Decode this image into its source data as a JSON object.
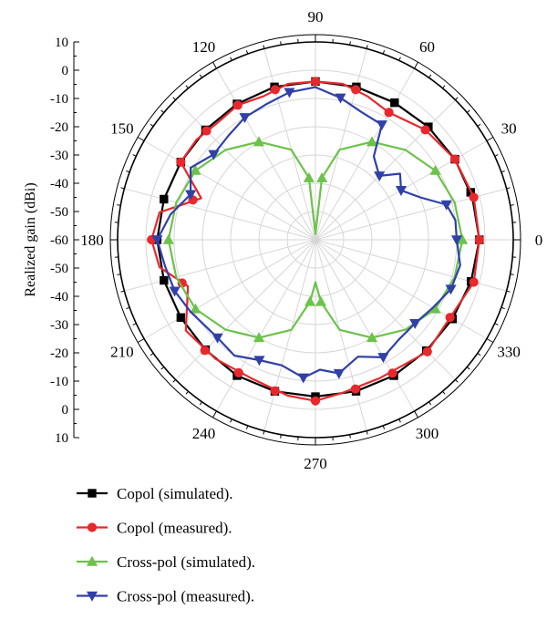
{
  "chart_data": {
    "type": "polar-line",
    "ylabel": "Realized gain (dBi)",
    "radial_range": [
      -60,
      10
    ],
    "radial_ticks_upper": [
      "10",
      "0",
      "-10",
      "-20",
      "-30",
      "-40",
      "-50",
      "-60"
    ],
    "radial_ticks_lower": [
      "-50",
      "-40",
      "-30",
      "-20",
      "-10",
      "0",
      "10"
    ],
    "angle_ticks": [
      "0",
      "30",
      "60",
      "90",
      "120",
      "150",
      "180",
      "210",
      "240",
      "270",
      "300",
      "330"
    ],
    "grid": true,
    "legend_position": "bottom-left",
    "series": [
      {
        "name": "Copol (simulated).",
        "color": "#000000",
        "marker": "square",
        "points": [
          [
            0,
            -2
          ],
          [
            15,
            -2.5
          ],
          [
            30,
            -3
          ],
          [
            45,
            -3.5
          ],
          [
            60,
            -4
          ],
          [
            75,
            -4
          ],
          [
            90,
            -4
          ],
          [
            105,
            -4
          ],
          [
            120,
            -4.5
          ],
          [
            135,
            -5
          ],
          [
            150,
            -5
          ],
          [
            165,
            -4.5
          ],
          [
            180,
            -4
          ],
          [
            195,
            -4.5
          ],
          [
            210,
            -5
          ],
          [
            225,
            -5
          ],
          [
            240,
            -4.5
          ],
          [
            255,
            -4.5
          ],
          [
            270,
            -4.5
          ],
          [
            285,
            -4.5
          ],
          [
            300,
            -4.5
          ],
          [
            315,
            -4.5
          ],
          [
            330,
            -4
          ],
          [
            345,
            -3
          ]
        ],
        "marker_angles": [
          0,
          17,
          30,
          45,
          60,
          75,
          90,
          105,
          120,
          135,
          150,
          165,
          180,
          195,
          210,
          225,
          240,
          255,
          270,
          285,
          300,
          315,
          330,
          345
        ]
      },
      {
        "name": "Copol (measured).",
        "color": "#e8282c",
        "marker": "circle",
        "points": [
          [
            0,
            -2
          ],
          [
            15,
            -2
          ],
          [
            30,
            -3
          ],
          [
            45,
            -5
          ],
          [
            60,
            -8
          ],
          [
            70,
            -6
          ],
          [
            80,
            -4
          ],
          [
            90,
            -4
          ],
          [
            100,
            -4
          ],
          [
            110,
            -6
          ],
          [
            120,
            -5
          ],
          [
            130,
            -6
          ],
          [
            140,
            -5
          ],
          [
            150,
            -5
          ],
          [
            160,
            -17
          ],
          [
            170,
            -4
          ],
          [
            180,
            -2
          ],
          [
            190,
            -4
          ],
          [
            200,
            -12
          ],
          [
            215,
            -4
          ],
          [
            230,
            -5
          ],
          [
            245,
            -6
          ],
          [
            260,
            -4
          ],
          [
            270,
            -3
          ],
          [
            280,
            -5
          ],
          [
            295,
            -6
          ],
          [
            315,
            -4
          ],
          [
            330,
            -5
          ],
          [
            345,
            -2
          ]
        ],
        "marker_angles": [
          0,
          15,
          30,
          45,
          60,
          75,
          90,
          105,
          120,
          135,
          150,
          162,
          180,
          198,
          225,
          240,
          255,
          270,
          285,
          300,
          315,
          330,
          345
        ]
      },
      {
        "name": "Cross-pol (simulated).",
        "color": "#6cc24a",
        "marker": "triangle-up",
        "points": [
          [
            0,
            -8
          ],
          [
            15,
            -9
          ],
          [
            30,
            -11
          ],
          [
            45,
            -15
          ],
          [
            60,
            -20
          ],
          [
            75,
            -27
          ],
          [
            84,
            -38
          ],
          [
            90,
            -58
          ],
          [
            96,
            -38
          ],
          [
            105,
            -27
          ],
          [
            120,
            -20
          ],
          [
            135,
            -15
          ],
          [
            150,
            -11
          ],
          [
            165,
            -9
          ],
          [
            180,
            -8
          ],
          [
            195,
            -9
          ],
          [
            210,
            -11
          ],
          [
            225,
            -15
          ],
          [
            240,
            -20
          ],
          [
            255,
            -27
          ],
          [
            265,
            -38
          ],
          [
            270,
            -45
          ],
          [
            275,
            -38
          ],
          [
            285,
            -27
          ],
          [
            300,
            -20
          ],
          [
            315,
            -15
          ],
          [
            330,
            -11
          ],
          [
            345,
            -9
          ]
        ]
      },
      {
        "name": "Cross-pol (measured).",
        "color": "#3040a8",
        "marker": "triangle-down",
        "points": [
          [
            0,
            -10
          ],
          [
            8,
            -10
          ],
          [
            15,
            -12
          ],
          [
            22,
            -20
          ],
          [
            30,
            -25
          ],
          [
            38,
            -22
          ],
          [
            45,
            -28
          ],
          [
            55,
            -24
          ],
          [
            60,
            -13
          ],
          [
            70,
            -12
          ],
          [
            80,
            -9
          ],
          [
            90,
            -6
          ],
          [
            100,
            -7
          ],
          [
            110,
            -9
          ],
          [
            120,
            -10
          ],
          [
            130,
            -12
          ],
          [
            140,
            -13
          ],
          [
            150,
            -9
          ],
          [
            160,
            -13
          ],
          [
            170,
            -8
          ],
          [
            180,
            -4
          ],
          [
            190,
            -6
          ],
          [
            200,
            -7
          ],
          [
            210,
            -9
          ],
          [
            225,
            -11
          ],
          [
            235,
            -10
          ],
          [
            245,
            -13
          ],
          [
            255,
            -14
          ],
          [
            265,
            -11
          ],
          [
            272,
            -14
          ],
          [
            280,
            -12
          ],
          [
            290,
            -16
          ],
          [
            300,
            -12
          ],
          [
            310,
            -14
          ],
          [
            320,
            -14
          ],
          [
            330,
            -12
          ],
          [
            340,
            -9
          ],
          [
            350,
            -8
          ]
        ]
      }
    ]
  }
}
